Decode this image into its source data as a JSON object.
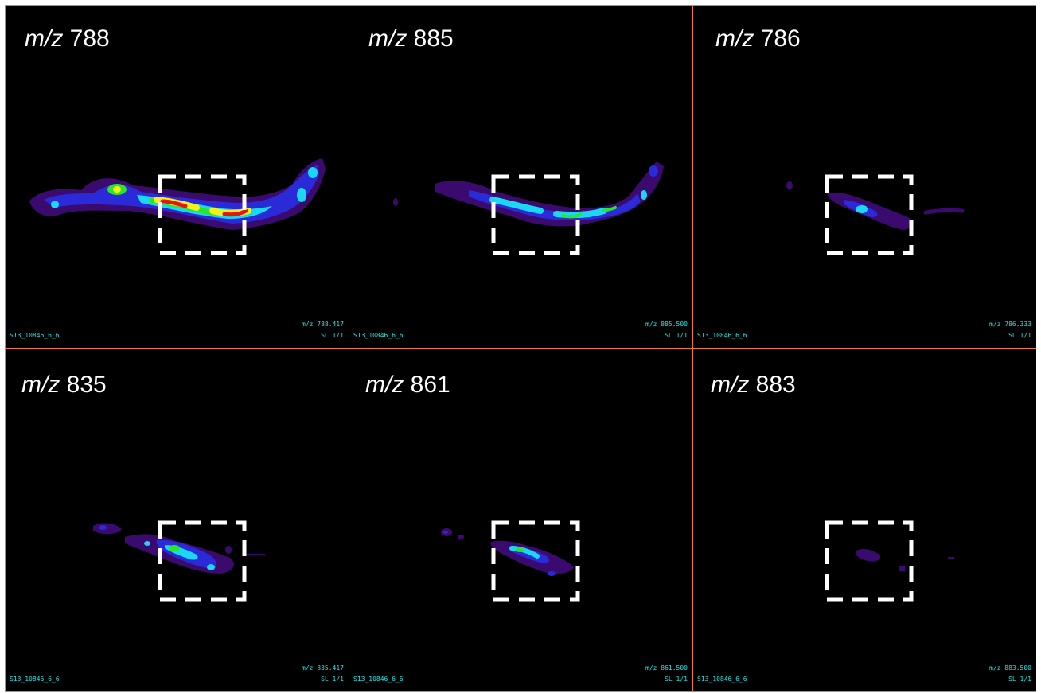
{
  "mz_prefix": "m/z",
  "panels": [
    {
      "id": "788",
      "ion": "788",
      "sample": "S13_10846_6_6",
      "mz_value": "m/z 788.417",
      "slice": "SL 1/1"
    },
    {
      "id": "885",
      "ion": "885",
      "sample": "S13_10846_6_6",
      "mz_value": "m/z 885.500",
      "slice": "SL 1/1"
    },
    {
      "id": "786",
      "ion": "786",
      "sample": "S13_10846_6_6",
      "mz_value": "m/z 786.333",
      "slice": "SL 1/1"
    },
    {
      "id": "835",
      "ion": "835",
      "sample": "S13_10846_6_6",
      "mz_value": "m/z 835.417",
      "slice": "SL 1/1"
    },
    {
      "id": "861",
      "ion": "861",
      "sample": "S13_10846_6_6",
      "mz_value": "m/z 861.500",
      "slice": "SL 1/1"
    },
    {
      "id": "883",
      "ion": "883",
      "sample": "S13_10846_6_6",
      "mz_value": "m/z 883.500",
      "slice": "SL 1/1"
    }
  ],
  "colors": {
    "border": "#f07a28",
    "background": "#000000",
    "label_text": "#ffffff",
    "footer_text": "#1fe6e6",
    "colormap": [
      "#3a0a6e",
      "#2a2ad8",
      "#19d8f0",
      "#2ae62a",
      "#f2f21a",
      "#e81414"
    ]
  }
}
